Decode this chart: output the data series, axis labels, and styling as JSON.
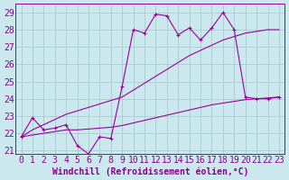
{
  "xlabel": "Windchill (Refroidissement éolien,°C)",
  "bg_color": "#cce8ef",
  "grid_color": "#aacccc",
  "line_color": "#990099",
  "xlim": [
    -0.5,
    23.5
  ],
  "ylim": [
    20.8,
    29.5
  ],
  "yticks": [
    21,
    22,
    23,
    24,
    25,
    26,
    27,
    28,
    29
  ],
  "xticks": [
    0,
    1,
    2,
    3,
    4,
    5,
    6,
    7,
    8,
    9,
    10,
    11,
    12,
    13,
    14,
    15,
    16,
    17,
    18,
    19,
    20,
    21,
    22,
    23
  ],
  "series1_x": [
    0,
    1,
    2,
    3,
    4,
    5,
    6,
    7,
    8,
    9,
    10,
    11,
    12,
    13,
    14,
    15,
    16,
    17,
    18,
    19,
    20,
    21,
    22,
    23
  ],
  "series1_y": [
    21.8,
    22.9,
    22.2,
    22.3,
    22.5,
    21.3,
    20.8,
    21.8,
    21.7,
    24.7,
    28.0,
    27.8,
    28.9,
    28.8,
    27.7,
    28.1,
    27.4,
    28.1,
    29.0,
    28.0,
    24.1,
    24.0,
    24.0,
    24.1
  ],
  "series2_x": [
    0,
    1,
    2,
    3,
    4,
    5,
    6,
    7,
    8,
    9,
    10,
    11,
    12,
    13,
    14,
    15,
    16,
    17,
    18,
    19,
    20,
    21,
    22,
    23
  ],
  "series2_y": [
    21.8,
    22.2,
    22.5,
    22.8,
    23.1,
    23.3,
    23.5,
    23.7,
    23.9,
    24.1,
    24.5,
    24.9,
    25.3,
    25.7,
    26.1,
    26.5,
    26.8,
    27.1,
    27.4,
    27.6,
    27.8,
    27.9,
    28.0,
    28.0
  ],
  "series3_x": [
    0,
    1,
    2,
    3,
    4,
    5,
    6,
    7,
    8,
    9,
    10,
    11,
    12,
    13,
    14,
    15,
    16,
    17,
    18,
    19,
    20,
    21,
    22,
    23
  ],
  "series3_y": [
    21.8,
    21.9,
    22.0,
    22.1,
    22.2,
    22.2,
    22.25,
    22.3,
    22.35,
    22.45,
    22.6,
    22.75,
    22.9,
    23.05,
    23.2,
    23.35,
    23.5,
    23.65,
    23.75,
    23.85,
    23.95,
    24.0,
    24.05,
    24.1
  ],
  "font_color": "#880088",
  "font_size": 7
}
